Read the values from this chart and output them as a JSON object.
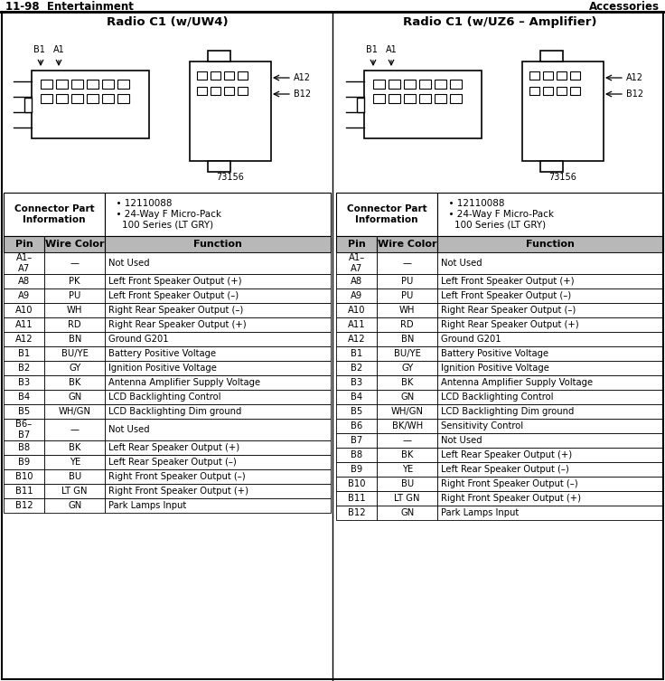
{
  "header_left": "11-98  Entertainment",
  "header_right": "Accessories",
  "title_left": "Radio C1 (w/UW4)",
  "title_right": "Radio C1 (w/UZ6 – Amplifier)",
  "connector_info_label": "Connector Part\nInformation",
  "connector_info_bullets": "  • 12110088\n  • 24-Way F Micro-Pack\n    100 Series (LT GRY)",
  "col_headers": [
    "Pin",
    "Wire Color",
    "Function"
  ],
  "left_table": [
    [
      "A1–\nA7",
      "—",
      "Not Used"
    ],
    [
      "A8",
      "PK",
      "Left Front Speaker Output (+)"
    ],
    [
      "A9",
      "PU",
      "Left Front Speaker Output (–)"
    ],
    [
      "A10",
      "WH",
      "Right Rear Speaker Output (–)"
    ],
    [
      "A11",
      "RD",
      "Right Rear Speaker Output (+)"
    ],
    [
      "A12",
      "BN",
      "Ground G201"
    ],
    [
      "B1",
      "BU/YE",
      "Battery Positive Voltage"
    ],
    [
      "B2",
      "GY",
      "Ignition Positive Voltage"
    ],
    [
      "B3",
      "BK",
      "Antenna Amplifier Supply Voltage"
    ],
    [
      "B4",
      "GN",
      "LCD Backlighting Control"
    ],
    [
      "B5",
      "WH/GN",
      "LCD Backlighting Dim ground"
    ],
    [
      "B6–\nB7",
      "—",
      "Not Used"
    ],
    [
      "B8",
      "BK",
      "Left Rear Speaker Output (+)"
    ],
    [
      "B9",
      "YE",
      "Left Rear Speaker Output (–)"
    ],
    [
      "B10",
      "BU",
      "Right Front Speaker Output (–)"
    ],
    [
      "B11",
      "LT GN",
      "Right Front Speaker Output (+)"
    ],
    [
      "B12",
      "GN",
      "Park Lamps Input"
    ]
  ],
  "right_table": [
    [
      "A1–\nA7",
      "—",
      "Not Used"
    ],
    [
      "A8",
      "PU",
      "Left Front Speaker Output (+)"
    ],
    [
      "A9",
      "PU",
      "Left Front Speaker Output (–)"
    ],
    [
      "A10",
      "WH",
      "Right Rear Speaker Output (–)"
    ],
    [
      "A11",
      "RD",
      "Right Rear Speaker Output (+)"
    ],
    [
      "A12",
      "BN",
      "Ground G201"
    ],
    [
      "B1",
      "BU/YE",
      "Battery Positive Voltage"
    ],
    [
      "B2",
      "GY",
      "Ignition Positive Voltage"
    ],
    [
      "B3",
      "BK",
      "Antenna Amplifier Supply Voltage"
    ],
    [
      "B4",
      "GN",
      "LCD Backlighting Control"
    ],
    [
      "B5",
      "WH/GN",
      "LCD Backlighting Dim ground"
    ],
    [
      "B6",
      "BK/WH",
      "Sensitivity Control"
    ],
    [
      "B7",
      "—",
      "Not Used"
    ],
    [
      "B8",
      "BK",
      "Left Rear Speaker Output (+)"
    ],
    [
      "B9",
      "YE",
      "Left Rear Speaker Output (–)"
    ],
    [
      "B10",
      "BU",
      "Right Front Speaker Output (–)"
    ],
    [
      "B11",
      "LT GN",
      "Right Front Speaker Output (+)"
    ],
    [
      "B12",
      "GN",
      "Park Lamps Input"
    ]
  ],
  "diagram_note": "73156",
  "bg_color": "#ffffff"
}
